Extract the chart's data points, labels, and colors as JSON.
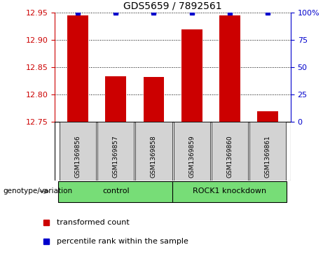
{
  "title": "GDS5659 / 7892561",
  "samples": [
    "GSM1369856",
    "GSM1369857",
    "GSM1369858",
    "GSM1369859",
    "GSM1369860",
    "GSM1369861"
  ],
  "red_values": [
    12.945,
    12.834,
    12.832,
    12.92,
    12.945,
    12.77
  ],
  "blue_values": [
    100,
    100,
    100,
    100,
    100,
    100
  ],
  "ylim_left": [
    12.75,
    12.95
  ],
  "ylim_right": [
    0,
    100
  ],
  "yticks_left": [
    12.75,
    12.8,
    12.85,
    12.9,
    12.95
  ],
  "yticks_right": [
    0,
    25,
    50,
    75,
    100
  ],
  "ybaseline": 12.75,
  "bar_color_red": "#CC0000",
  "bar_color_blue": "#0000CC",
  "bg_color": "#D3D3D3",
  "plot_bg": "#FFFFFF",
  "left_tick_color": "#CC0000",
  "right_tick_color": "#0000CC",
  "genotype_label": "genotype/variation",
  "legend_red": "transformed count",
  "legend_blue": "percentile rank within the sample",
  "group_spans": [
    [
      -0.5,
      2.5,
      "control",
      "#77DD77"
    ],
    [
      2.5,
      5.5,
      "ROCK1 knockdown",
      "#77DD77"
    ]
  ]
}
